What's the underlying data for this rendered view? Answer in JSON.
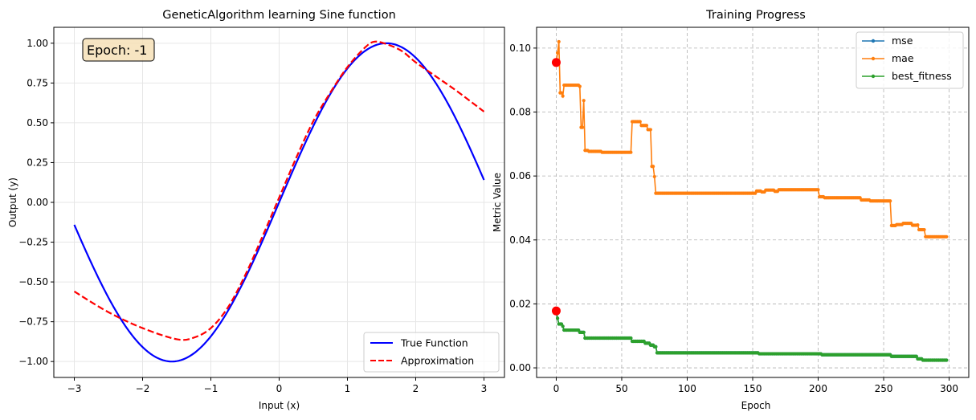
{
  "chart_data": [
    {
      "type": "line",
      "title": "GeneticAlgorithm learning Sine function",
      "xlabel": "Input (x)",
      "ylabel": "Output (y)",
      "xlim": [
        -3.3,
        3.3
      ],
      "ylim": [
        -1.1,
        1.1
      ],
      "xticks": [
        -3,
        -2,
        -1,
        0,
        1,
        2,
        3
      ],
      "xtick_labels": [
        "−3",
        "−2",
        "−1",
        "0",
        "1",
        "2",
        "3"
      ],
      "yticks": [
        -1.0,
        -0.75,
        -0.5,
        -0.25,
        0.0,
        0.25,
        0.5,
        0.75,
        1.0
      ],
      "ytick_labels": [
        "−1.00",
        "−0.75",
        "−0.50",
        "−0.25",
        "0.00",
        "0.25",
        "0.50",
        "0.75",
        "1.00"
      ],
      "grid": true,
      "legend_position": "lower-right",
      "annotation": "Epoch: -1",
      "series": [
        {
          "name": "True Function",
          "color": "#0000ff",
          "style": "solid",
          "function": "sin",
          "x_range": [
            -3,
            3
          ]
        },
        {
          "name": "Approximation",
          "color": "#ff0000",
          "style": "dashed",
          "x": [
            -3.0,
            -2.5,
            -2.0,
            -1.5,
            -1.25,
            -1.0,
            -0.75,
            -0.5,
            -0.25,
            0.0,
            0.25,
            0.5,
            0.75,
            1.0,
            1.25,
            1.4,
            1.6,
            1.8,
            2.0,
            2.3,
            2.6,
            3.0
          ],
          "y": [
            -0.56,
            -0.69,
            -0.79,
            -0.86,
            -0.85,
            -0.79,
            -0.66,
            -0.46,
            -0.22,
            0.03,
            0.28,
            0.51,
            0.69,
            0.85,
            0.97,
            1.01,
            0.99,
            0.95,
            0.88,
            0.79,
            0.7,
            0.57
          ]
        }
      ]
    },
    {
      "type": "line",
      "title": "Training Progress",
      "xlabel": "Epoch",
      "ylabel": "Metric Value",
      "xlim": [
        -15,
        315
      ],
      "ylim": [
        -0.003,
        0.1065
      ],
      "xticks": [
        0,
        50,
        100,
        150,
        200,
        250,
        300
      ],
      "xtick_labels": [
        "0",
        "50",
        "100",
        "150",
        "200",
        "250",
        "300"
      ],
      "yticks": [
        0.0,
        0.02,
        0.04,
        0.06,
        0.08,
        0.1
      ],
      "ytick_labels": [
        "0.00",
        "0.02",
        "0.04",
        "0.06",
        "0.08",
        "0.10"
      ],
      "grid": true,
      "grid_style": "dashed",
      "legend_position": "upper-right",
      "series": [
        {
          "name": "mse",
          "color": "#1f77b4",
          "marker": "dot",
          "steps": [
            [
              0,
              0.0178
            ],
            [
              1,
              0.0155
            ],
            [
              2,
              0.0137
            ],
            [
              5,
              0.013
            ],
            [
              6,
              0.0118
            ],
            [
              18,
              0.0111
            ],
            [
              22,
              0.0093
            ],
            [
              55,
              0.0093
            ],
            [
              58,
              0.0083
            ],
            [
              68,
              0.0077
            ],
            [
              72,
              0.0071
            ],
            [
              75,
              0.0066
            ],
            [
              77,
              0.0047
            ],
            [
              150,
              0.0047
            ],
            [
              155,
              0.0044
            ],
            [
              200,
              0.0044
            ],
            [
              203,
              0.0041
            ],
            [
              255,
              0.0041
            ],
            [
              256,
              0.0036
            ],
            [
              275,
              0.0036
            ],
            [
              276,
              0.0028
            ],
            [
              280,
              0.0024
            ],
            [
              298,
              0.0024
            ]
          ]
        },
        {
          "name": "mae",
          "color": "#ff7f0e",
          "marker": "dot",
          "steps": [
            [
              0,
              0.0955
            ],
            [
              1,
              0.0985
            ],
            [
              2,
              0.102
            ],
            [
              3,
              0.086
            ],
            [
              5,
              0.085
            ],
            [
              6,
              0.0884
            ],
            [
              18,
              0.088
            ],
            [
              19,
              0.0752
            ],
            [
              21,
              0.0836
            ],
            [
              22,
              0.068
            ],
            [
              25,
              0.0677
            ],
            [
              35,
              0.0674
            ],
            [
              57,
              0.0674
            ],
            [
              58,
              0.077
            ],
            [
              65,
              0.0758
            ],
            [
              70,
              0.0745
            ],
            [
              73,
              0.063
            ],
            [
              75,
              0.0598
            ],
            [
              76,
              0.0546
            ],
            [
              150,
              0.0546
            ],
            [
              153,
              0.0553
            ],
            [
              157,
              0.055
            ],
            [
              160,
              0.0556
            ],
            [
              167,
              0.0552
            ],
            [
              170,
              0.0557
            ],
            [
              200,
              0.0557
            ],
            [
              201,
              0.0535
            ],
            [
              205,
              0.0532
            ],
            [
              232,
              0.0532
            ],
            [
              233,
              0.0525
            ],
            [
              240,
              0.0522
            ],
            [
              255,
              0.0522
            ],
            [
              256,
              0.0445
            ],
            [
              260,
              0.0448
            ],
            [
              265,
              0.0452
            ],
            [
              272,
              0.0446
            ],
            [
              276,
              0.0447
            ],
            [
              277,
              0.0432
            ],
            [
              282,
              0.041
            ],
            [
              298,
              0.041
            ]
          ]
        },
        {
          "name": "best_fitness",
          "color": "#2ca02c",
          "marker": "dot",
          "steps": [
            [
              0,
              0.0178
            ],
            [
              1,
              0.0155
            ],
            [
              2,
              0.0137
            ],
            [
              5,
              0.013
            ],
            [
              6,
              0.0118
            ],
            [
              18,
              0.0111
            ],
            [
              22,
              0.0093
            ],
            [
              55,
              0.0093
            ],
            [
              58,
              0.0083
            ],
            [
              68,
              0.0077
            ],
            [
              72,
              0.0071
            ],
            [
              75,
              0.0066
            ],
            [
              77,
              0.0047
            ],
            [
              150,
              0.0047
            ],
            [
              155,
              0.0044
            ],
            [
              200,
              0.0044
            ],
            [
              203,
              0.0041
            ],
            [
              255,
              0.0041
            ],
            [
              256,
              0.0036
            ],
            [
              275,
              0.0036
            ],
            [
              276,
              0.0028
            ],
            [
              280,
              0.0024
            ],
            [
              298,
              0.0024
            ]
          ]
        }
      ],
      "highlight_points": [
        {
          "x": 0,
          "y": 0.0955,
          "color": "#ff0000"
        },
        {
          "x": 0,
          "y": 0.0178,
          "color": "#ff0000"
        }
      ]
    }
  ]
}
